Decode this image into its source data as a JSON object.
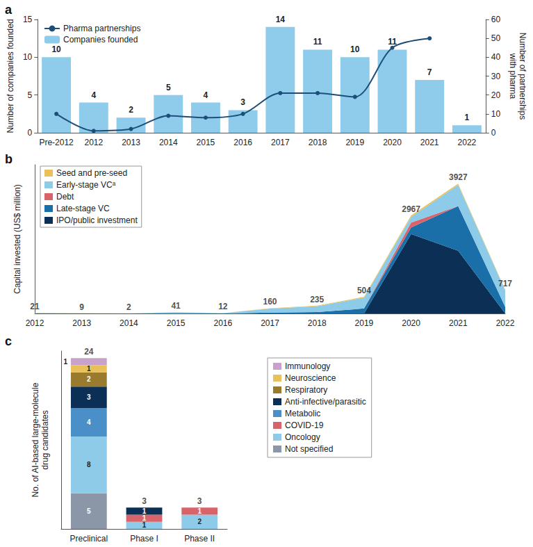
{
  "chart_data": [
    {
      "type": "bar",
      "title": "a",
      "categories": [
        "Pre-2012",
        "2012",
        "2013",
        "2014",
        "2015",
        "2016",
        "2017",
        "2018",
        "2019",
        "2020",
        "2021",
        "2022"
      ],
      "series": [
        {
          "name": "Pharma partnerships",
          "type": "line",
          "axis": "y2",
          "color": "#1d4e79",
          "marker": "circle",
          "line_style": "solid",
          "values": [
            10,
            1,
            2,
            9,
            8,
            10,
            21,
            21,
            19,
            45,
            50,
            null
          ]
        },
        {
          "name": "Companies founded",
          "type": "bar",
          "color": "#8fcbea",
          "data_labels": true,
          "values": [
            10,
            4,
            2,
            5,
            4,
            3,
            14,
            11,
            10,
            11,
            7,
            1
          ]
        }
      ],
      "y_label": "Number of companies founded",
      "y2_label": "Number of partnerships\nwith pharma",
      "ylim": [
        0,
        15
      ],
      "yticks": [
        0,
        5,
        10,
        15
      ],
      "y2lim": [
        0,
        60
      ],
      "y2ticks": [
        0,
        10,
        20,
        30,
        40,
        50,
        60
      ],
      "legend": "upper left",
      "grid": false
    },
    {
      "type": "area",
      "title": "b",
      "stacked": true,
      "categories": [
        "2012",
        "2013",
        "2014",
        "2015",
        "2016",
        "2017",
        "2018",
        "2019",
        "2020",
        "2021",
        "2022"
      ],
      "series": [
        {
          "name": "IPO/public investment",
          "color": "#0c2f55",
          "values": [
            0,
            0,
            0,
            0,
            0,
            0,
            0,
            0,
            2400,
            1900,
            0
          ]
        },
        {
          "name": "Late-stage VC",
          "color": "#1a6fa8",
          "values": [
            0,
            0,
            0,
            0,
            0,
            25,
            40,
            150,
            200,
            1350,
            200
          ]
        },
        {
          "name": "Debt",
          "color": "#d9636a",
          "values": [
            0,
            0,
            0,
            0,
            0,
            0,
            0,
            0,
            150,
            0,
            0
          ]
        },
        {
          "name": "Early-stage VCᵃ",
          "color": "#8ecbe9",
          "values": [
            16,
            6,
            0,
            35,
            8,
            120,
            180,
            330,
            170,
            640,
            500
          ]
        },
        {
          "name": "Seed and pre-seed",
          "color": "#e8c15a",
          "values": [
            5,
            3,
            2,
            6,
            4,
            15,
            15,
            24,
            47,
            37,
            17
          ]
        }
      ],
      "totals": [
        21,
        9,
        2,
        41,
        12,
        160,
        235,
        504,
        2967,
        3927,
        717
      ],
      "y_label": "Capital invested (US$ million)",
      "ylim": [
        0,
        4500
      ],
      "tick_labels": "x",
      "legend": "upper left",
      "grid": false
    },
    {
      "type": "bar",
      "title": "c",
      "stacked": true,
      "data_labels": true,
      "categories": [
        "Preclinical",
        "Phase I",
        "Phase II"
      ],
      "series": [
        {
          "name": "Not specified",
          "color": "#8b97a8",
          "values": [
            5,
            0,
            0
          ]
        },
        {
          "name": "Oncology",
          "color": "#8ecbe9",
          "values": [
            8,
            1,
            2
          ]
        },
        {
          "name": "COVID-19",
          "color": "#d9636a",
          "values": [
            0,
            1,
            1
          ]
        },
        {
          "name": "Metabolic",
          "color": "#4a8fc7",
          "values": [
            4,
            0,
            0
          ]
        },
        {
          "name": "Anti-infective/parasitic",
          "color": "#0c2f55",
          "values": [
            3,
            1,
            0
          ]
        },
        {
          "name": "Respiratory",
          "color": "#9a7b2e",
          "values": [
            2,
            0,
            0
          ]
        },
        {
          "name": "Neuroscience",
          "color": "#e8c15a",
          "values": [
            1,
            0,
            0
          ]
        },
        {
          "name": "Immunology",
          "color": "#c9a2c9",
          "values": [
            1,
            0,
            0
          ]
        }
      ],
      "totals": [
        24,
        3,
        3
      ],
      "y_label": "No. of AI-based large-molecule\ndrug candidates",
      "ylim": [
        0,
        25
      ],
      "tick_labels": "x",
      "legend": "right",
      "grid": false
    }
  ]
}
